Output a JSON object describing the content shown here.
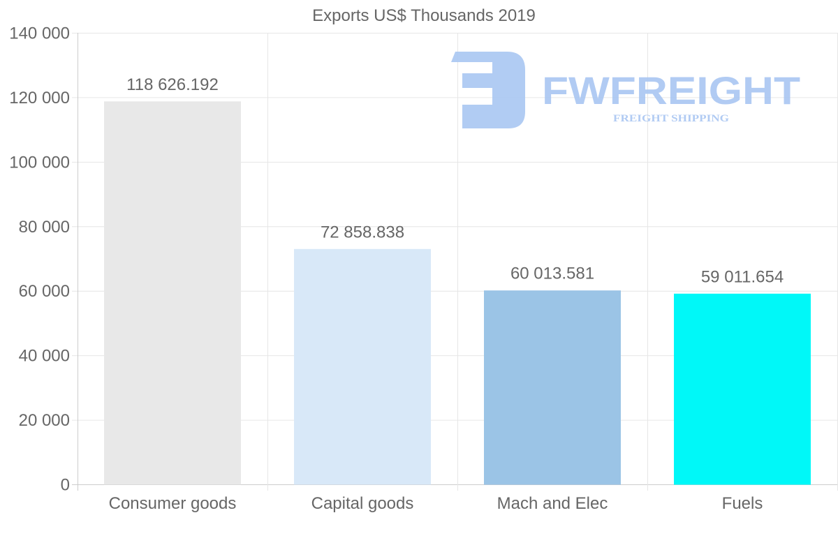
{
  "chart_data": {
    "type": "bar",
    "title": "Exports US$ Thousands 2019",
    "categories": [
      "Consumer goods",
      "Capital goods",
      "Mach and Elec",
      "Fuels"
    ],
    "values": [
      118626.192,
      72858.838,
      60013.581,
      59011.654
    ],
    "value_labels": [
      "118 626.192",
      "72 858.838",
      "60 013.581",
      "59 011.654"
    ],
    "colors": [
      "#e8e8e8",
      "#d8e8f8",
      "#9bc4e6",
      "#00f8f8"
    ],
    "ylim": [
      0,
      140000
    ],
    "yticks": [
      0,
      20000,
      40000,
      60000,
      80000,
      100000,
      120000,
      140000
    ],
    "ytick_labels": [
      "0",
      "20 000",
      "40 000",
      "60 000",
      "80 000",
      "100 000",
      "120 000",
      "140 000"
    ],
    "xlabel": "",
    "ylabel": "",
    "grid": true,
    "legend": "none"
  },
  "watermark": {
    "brand": "FWFREIGHT",
    "tagline": "FREIGHT SHIPPING",
    "color": "#a9c6f2"
  }
}
